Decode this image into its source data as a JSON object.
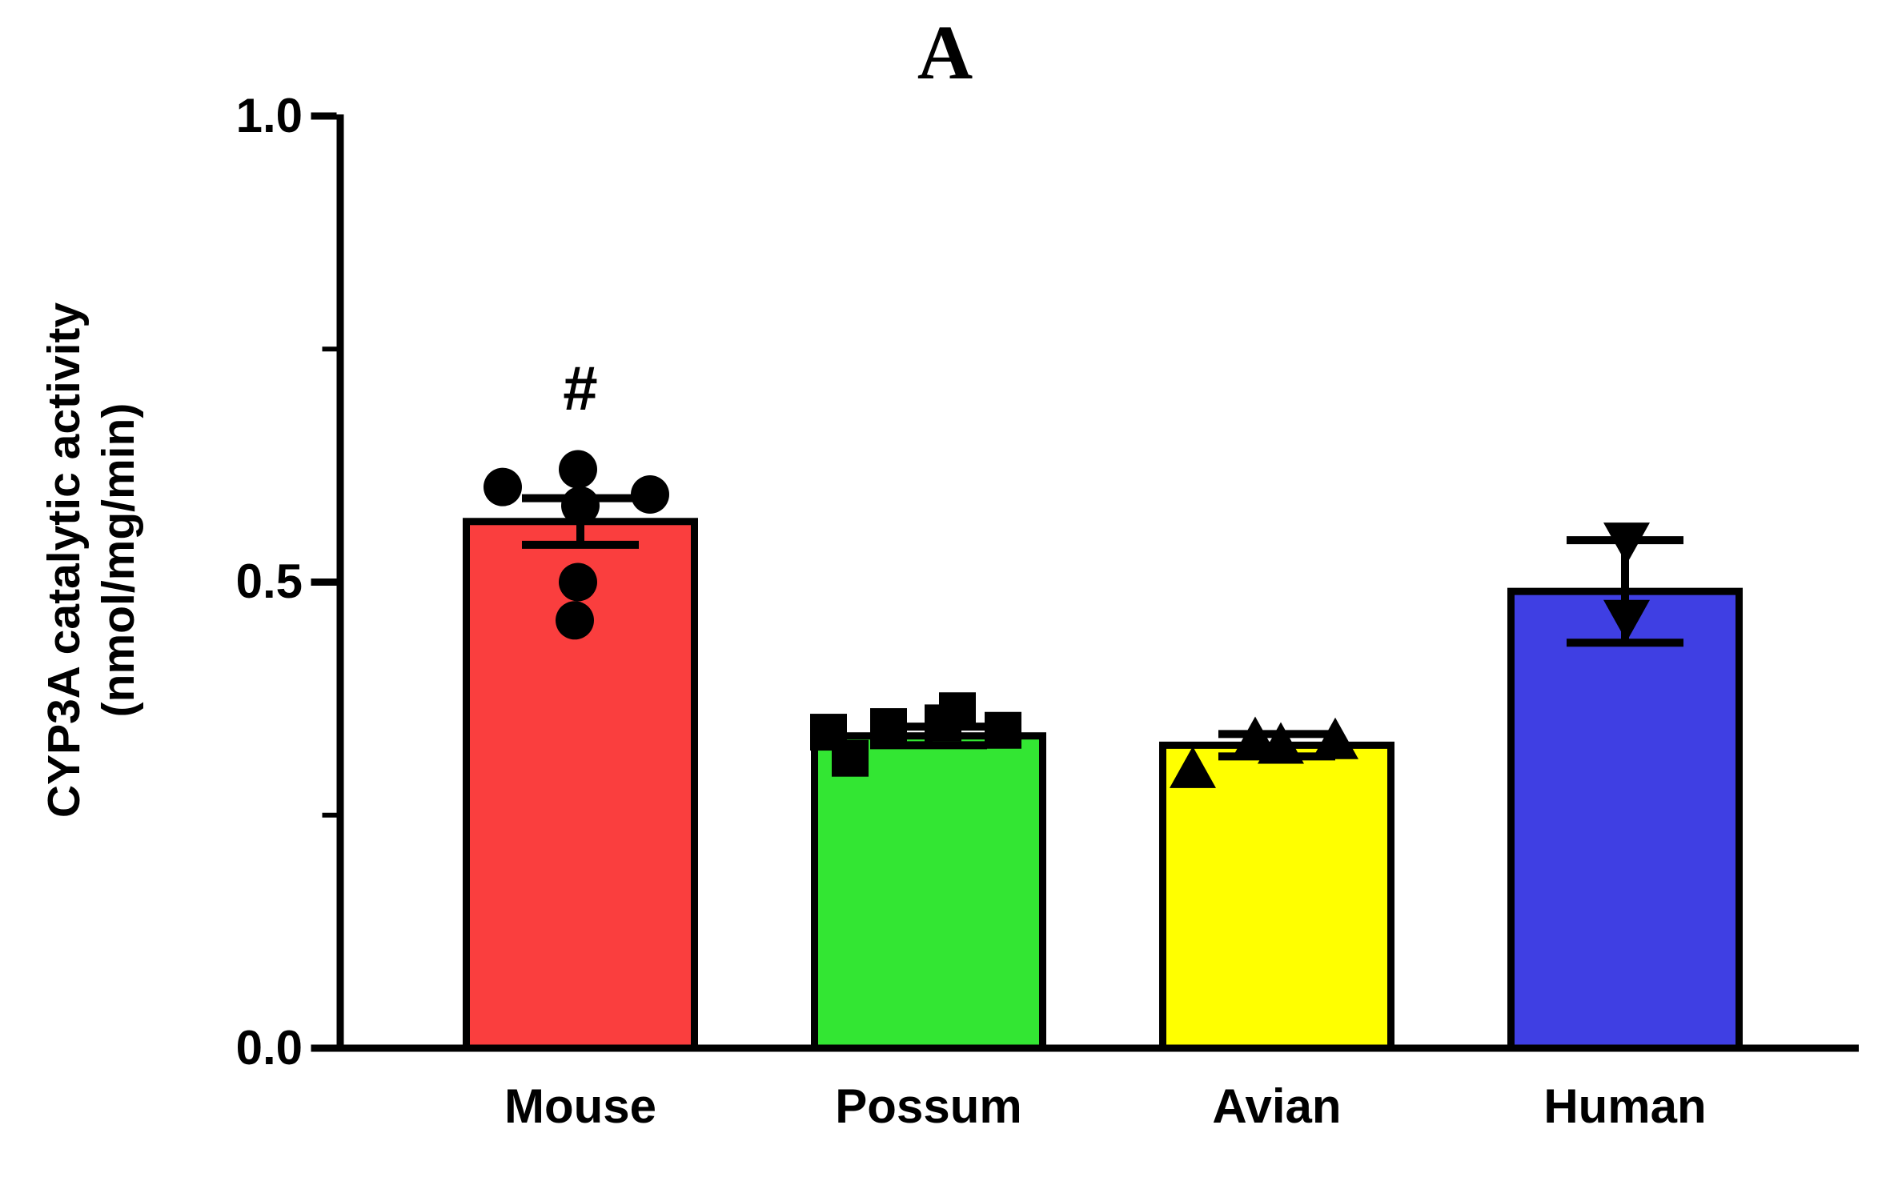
{
  "chart_data": {
    "type": "bar",
    "title": "A",
    "ylabel": [
      "CYP3A catalytic activity",
      "(nmol/mg/min)"
    ],
    "xlabel": "",
    "ylim": [
      0.0,
      1.0
    ],
    "ytick_labels": [
      "0.0",
      "0.5",
      "1.0"
    ],
    "yticks_major": [
      0.0,
      0.5,
      1.0
    ],
    "yticks_minor": [
      0.25,
      0.75
    ],
    "grid": "off",
    "legend": "none",
    "categories": [
      "Mouse",
      "Possum",
      "Avian",
      "Human"
    ],
    "series": [
      {
        "category": "Mouse",
        "bar_color": "#fa3e3e",
        "marker": "circle",
        "mean": 0.565,
        "error_upper": 0.59,
        "error_lower": 0.54,
        "points": [
          {
            "dx": -97,
            "v": 0.602
          },
          {
            "dx": -3,
            "v": 0.621
          },
          {
            "dx": 87,
            "v": 0.594
          },
          {
            "dx": 0,
            "v": 0.582
          },
          {
            "dx": -3,
            "v": 0.5
          },
          {
            "dx": -7,
            "v": 0.459
          }
        ]
      },
      {
        "category": "Possum",
        "bar_color": "#33e633",
        "marker": "square",
        "mean": 0.335,
        "error_upper": 0.345,
        "error_lower": 0.325,
        "points": [
          {
            "dx": -125,
            "v": 0.339
          },
          {
            "dx": -98,
            "v": 0.311
          },
          {
            "dx": -50,
            "v": 0.345
          },
          {
            "dx": 18,
            "v": 0.349
          },
          {
            "dx": 36,
            "v": 0.362
          },
          {
            "dx": 93,
            "v": 0.341
          }
        ]
      },
      {
        "category": "Avian",
        "bar_color": "#ffff00",
        "marker": "triangle-up",
        "mean": 0.325,
        "error_upper": 0.337,
        "error_lower": 0.313,
        "points": [
          {
            "dx": -105,
            "v": 0.298
          },
          {
            "dx": -27,
            "v": 0.33
          },
          {
            "dx": 5,
            "v": 0.324
          },
          {
            "dx": 73,
            "v": 0.329
          }
        ]
      },
      {
        "category": "Human",
        "bar_color": "#3f3fe3",
        "marker": "triangle-down",
        "mean": 0.49,
        "error_upper": 0.545,
        "error_lower": 0.435,
        "points": [
          {
            "dx": 2,
            "v": 0.545
          },
          {
            "dx": 2,
            "v": 0.462
          }
        ]
      }
    ],
    "annotations": [
      {
        "text": "#",
        "category": "Mouse",
        "v": 0.7
      }
    ]
  }
}
